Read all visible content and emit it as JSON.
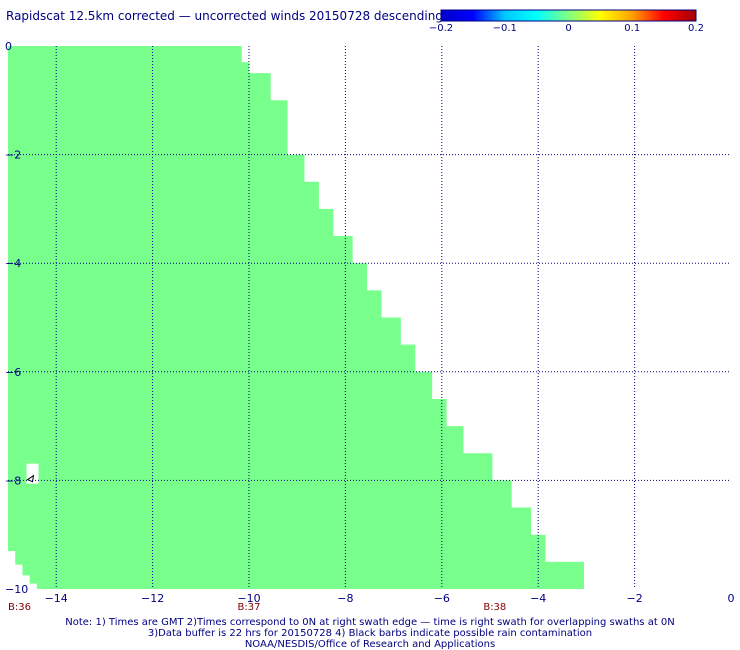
{
  "title": "Rapidscat 12.5km corrected — uncorrected winds 20150728 descending",
  "colorbar": {
    "min": -0.2,
    "max": 0.2,
    "tick_labels": [
      "−0.2",
      "−0.1",
      "0",
      "0.1",
      "0.2"
    ],
    "colors": [
      "#0000c8",
      "#0000ff",
      "#00c8ff",
      "#00ffff",
      "#80ff80",
      "#ffff00",
      "#ffa000",
      "#ff0000",
      "#a00000"
    ]
  },
  "chart_data": {
    "type": "heatmap",
    "title": "Rapidscat 12.5km corrected — uncorrected winds 20150728 descending",
    "xlim": [
      -15,
      0
    ],
    "ylim": [
      -10,
      0
    ],
    "x_ticks": [
      -14,
      -12,
      -10,
      -8,
      -6,
      -4,
      -2,
      0
    ],
    "x_tick_labels": [
      "−14",
      "−12",
      "−10",
      "−8",
      "−6",
      "−4",
      "−2",
      "0"
    ],
    "y_ticks": [
      0,
      -2,
      -4,
      -6,
      -8,
      -10
    ],
    "y_tick_labels": [
      "0",
      "−2",
      "−4",
      "−6",
      "−8",
      "−10"
    ],
    "grid": true,
    "fill_value": 0,
    "fill_color": "#78ff8c",
    "swath_right_edge": [
      [
        0.0,
        -10.35
      ],
      [
        -0.3,
        -10.15
      ],
      [
        -0.5,
        -10.0
      ],
      [
        -1.0,
        -9.55
      ],
      [
        -2.0,
        -9.2
      ],
      [
        -2.5,
        -8.85
      ],
      [
        -3.0,
        -8.55
      ],
      [
        -3.5,
        -8.25
      ],
      [
        -4.0,
        -7.85
      ],
      [
        -4.5,
        -7.55
      ],
      [
        -5.0,
        -7.25
      ],
      [
        -5.5,
        -6.85
      ],
      [
        -6.0,
        -6.55
      ],
      [
        -6.5,
        -6.2
      ],
      [
        -7.0,
        -5.9
      ],
      [
        -7.5,
        -5.55
      ],
      [
        -8.0,
        -4.95
      ],
      [
        -8.5,
        -4.55
      ],
      [
        -9.0,
        -4.15
      ],
      [
        -9.5,
        -3.85
      ],
      [
        -10.0,
        -3.05
      ]
    ],
    "swath_left_edge": [
      [
        0.0,
        -15.0
      ],
      [
        -9.3,
        -15.0
      ],
      [
        -9.55,
        -14.85
      ],
      [
        -9.75,
        -14.7
      ],
      [
        -9.9,
        -14.55
      ],
      [
        -10.0,
        -14.4
      ]
    ],
    "annotations": [
      {
        "text": "B:36",
        "x": -15.0
      },
      {
        "text": "B:37",
        "x": -10.0
      },
      {
        "text": "B:38",
        "x": -4.9
      }
    ],
    "rain_flag": {
      "x": -14.45,
      "y": -7.95
    }
  },
  "notes": [
    "Note: 1) Times are GMT 2)Times correspond to 0N at right swath edge — time is right swath for overlapping swaths at 0N",
    "3)Data buffer is 22 hrs for 20150728 4) Black barbs indicate possible rain contamination",
    "NOAA/NESDIS/Office of Research and Applications"
  ]
}
